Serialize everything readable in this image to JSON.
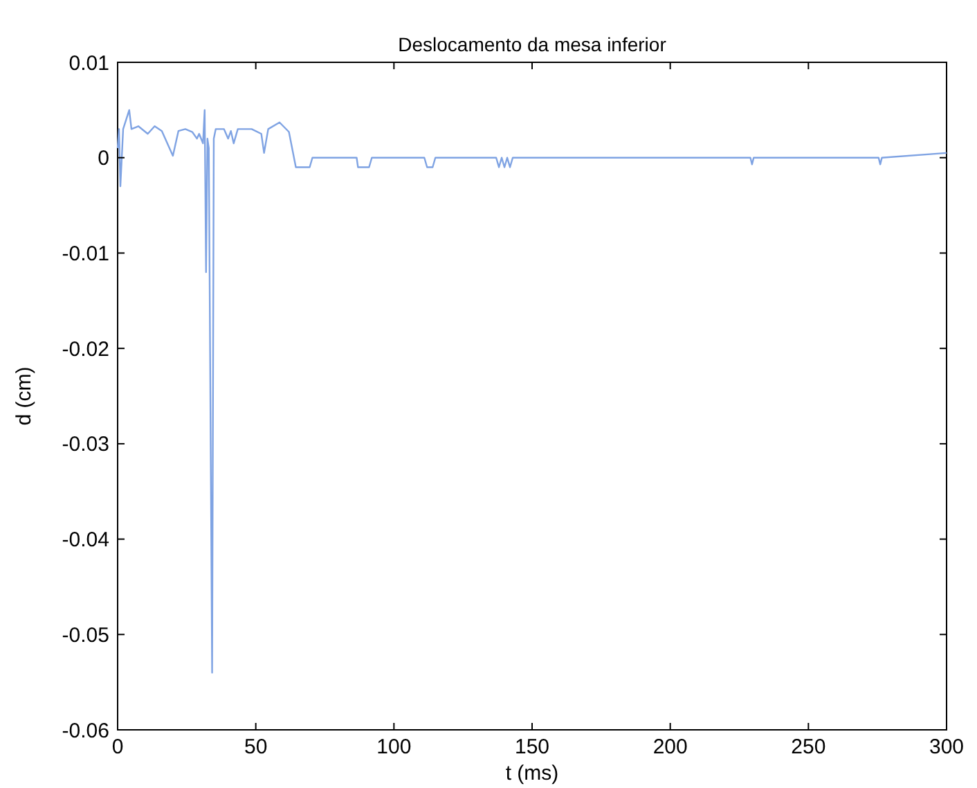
{
  "chart_data": {
    "type": "line",
    "title": "Deslocamento da mesa inferior",
    "xlabel": "t (ms)",
    "ylabel": "d (cm)",
    "xlim": [
      0,
      300
    ],
    "xticks": [
      0,
      50,
      100,
      150,
      200,
      250,
      300
    ],
    "ylim": [
      -0.06,
      0.01
    ],
    "yticks": [
      -0.06,
      -0.05,
      -0.04,
      -0.03,
      -0.02,
      -0.01,
      0,
      0.01
    ],
    "grid": false,
    "series": [
      {
        "color": "#7fa3e3",
        "x": [
          0,
          0.5,
          1,
          2,
          4.2,
          5,
          7.5,
          10.9,
          13.4,
          16,
          20,
          22,
          24.5,
          27,
          28.7,
          29.5,
          30.9,
          31.5,
          32,
          32.5,
          33,
          34.2,
          34.8,
          35.5,
          38.5,
          40,
          41,
          42,
          43.5,
          48.5,
          52,
          53,
          54.5,
          58.6,
          62,
          64.5,
          69.5,
          70.5,
          86.5,
          87,
          91,
          92,
          111,
          112,
          114,
          115,
          137,
          138,
          139,
          140,
          141,
          142,
          143,
          229,
          229.6,
          230.2,
          275.4,
          276,
          276.6,
          300
        ],
        "values": [
          0.001,
          0.003,
          -0.003,
          0.003,
          0.005,
          0.003,
          0.0033,
          0.0025,
          0.0033,
          0.0028,
          0.0002,
          0.0028,
          0.003,
          0.0027,
          0.002,
          0.0025,
          0.0015,
          0.005,
          -0.012,
          0.002,
          0.001,
          -0.054,
          0.002,
          0.003,
          0.003,
          0.002,
          0.0028,
          0.0015,
          0.003,
          0.003,
          0.0025,
          0.0005,
          0.003,
          0.0037,
          0.0027,
          -0.001,
          -0.001,
          0,
          0,
          -0.001,
          -0.001,
          0,
          0,
          -0.001,
          -0.001,
          0,
          0,
          -0.001,
          0,
          -0.001,
          0,
          -0.001,
          0,
          0,
          -0.0007,
          0,
          0,
          -0.0007,
          0,
          0.0005
        ]
      }
    ]
  }
}
